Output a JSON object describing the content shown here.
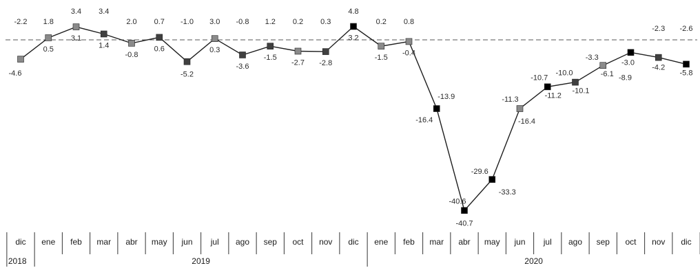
{
  "chart_data": {
    "type": "line",
    "title": "",
    "xlabel": "",
    "ylabel": "",
    "ylim": [
      -45,
      6
    ],
    "grid": false,
    "axis": {
      "zero_line": "dashed"
    },
    "months": [
      "dic",
      "ene",
      "feb",
      "mar",
      "abr",
      "may",
      "jun",
      "jul",
      "ago",
      "sep",
      "oct",
      "nov",
      "dic",
      "ene",
      "feb",
      "mar",
      "abr",
      "may",
      "jun",
      "jul",
      "ago",
      "sep",
      "oct",
      "nov",
      "dic"
    ],
    "year_groups": [
      {
        "label": "2018",
        "start": 0,
        "end": 0
      },
      {
        "label": "2019",
        "start": 1,
        "end": 12
      },
      {
        "label": "2020",
        "start": 13,
        "end": 24
      }
    ],
    "series": [
      {
        "marker_colors": [
          "#8a8a8a",
          "#8a8a8a",
          "#8a8a8a",
          "#404040",
          "#8a8a8a",
          "#404040",
          "#404040",
          "#8a8a8a",
          "#404040",
          "#404040",
          "#8a8a8a",
          "#404040",
          "#000000",
          "#8a8a8a",
          "#8a8a8a",
          "#000000",
          "#000000",
          "#000000",
          "#8a8a8a",
          "#000000",
          "#404040",
          "#8a8a8a",
          "#000000",
          "#404040",
          "#000000"
        ],
        "values": [
          -4.6,
          0.5,
          3.1,
          1.4,
          -0.8,
          0.6,
          -5.2,
          0.3,
          -3.6,
          -1.5,
          -2.7,
          -2.8,
          3.2,
          -1.5,
          -0.4,
          -16.4,
          -40.7,
          -33.3,
          -16.4,
          -11.2,
          -10.1,
          -6.1,
          -3.0,
          -4.2,
          -5.8
        ]
      }
    ],
    "upper_labels": [
      "-2.2",
      "1.8",
      "3.4",
      "3.4",
      "2.0",
      "0.7",
      "-1.0",
      "3.0",
      "-0.8",
      "1.2",
      "0.2",
      "0.3",
      "4.8",
      "0.2",
      "0.8",
      "-13.9",
      "-40.6",
      "-29.6",
      "-11.3",
      "-10.7",
      "-10.0",
      "-3.3",
      "-8.9",
      "-2.3",
      "-2.6"
    ],
    "point_labels": [
      "-4.6",
      "0.5",
      "3.1",
      "1.4",
      "-0.8",
      "0.6",
      "-5.2",
      "0.3",
      "-3.6",
      "-1.5",
      "-2.7",
      "-2.8",
      "3.2",
      "-1.5",
      "-0.4",
      "-16.4",
      "-40.7",
      "-33.3",
      "-16.4",
      "-11.2",
      "-10.1",
      "-6.1",
      "-3.0",
      "-4.2",
      "-5.8"
    ]
  }
}
